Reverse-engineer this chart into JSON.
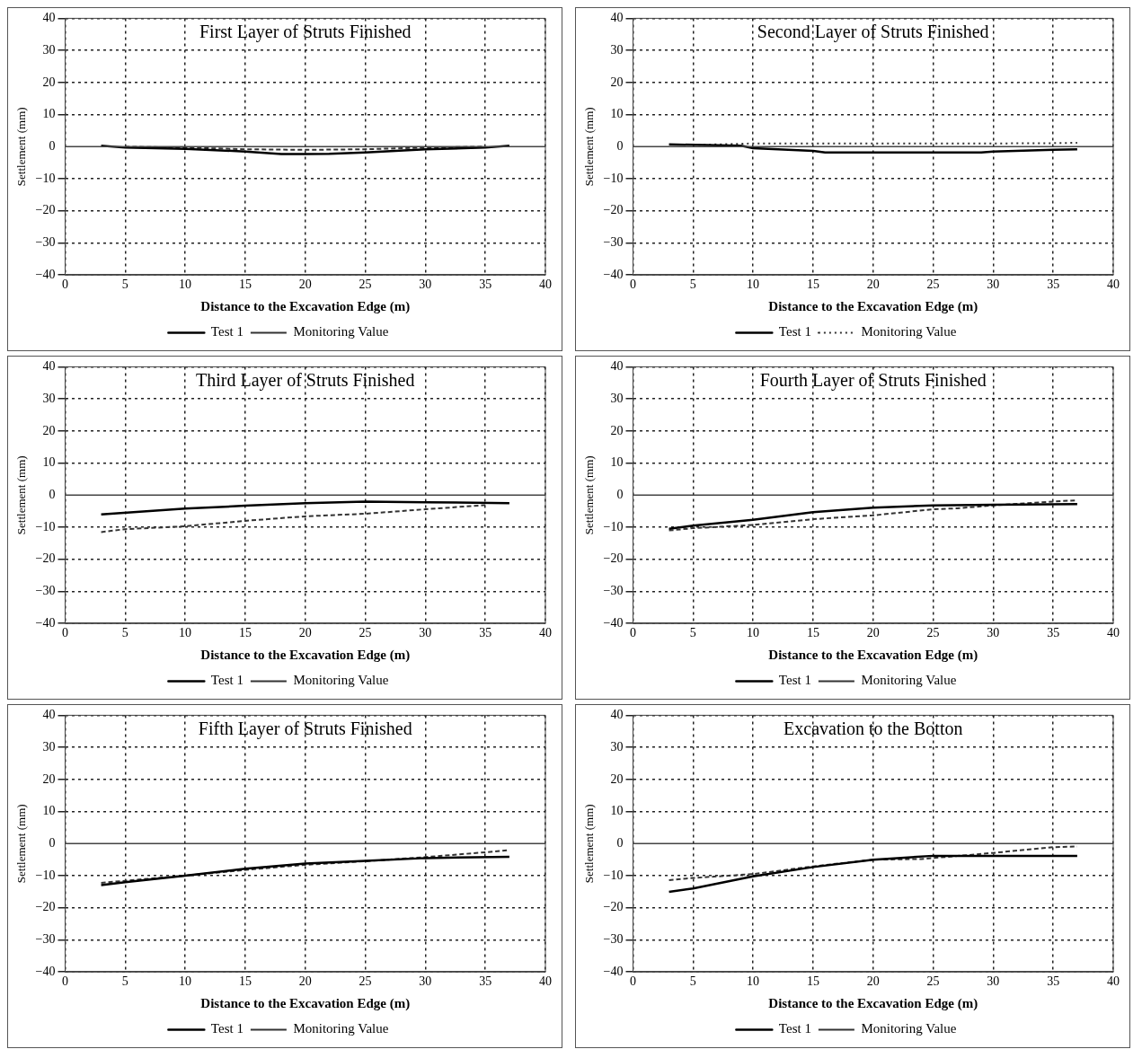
{
  "chart_data": [
    {
      "type": "line",
      "title": "First Layer of Struts Finished",
      "ref_lines": [
        {
          "axis": "y",
          "value": 0
        }
      ],
      "xlabel": "Distance to the Excavation Edge (m)",
      "ylabel": "Settlement (mm)",
      "xlim": [
        0,
        40
      ],
      "ylim": [
        -40,
        40
      ],
      "xticks": [
        0,
        5,
        10,
        15,
        20,
        25,
        30,
        35,
        40
      ],
      "yticks": [
        -40,
        -30,
        -20,
        -10,
        0,
        10,
        20,
        30,
        40
      ],
      "grid": true,
      "legend": "bottom",
      "series": [
        {
          "name": "Test 1",
          "color": "#000000",
          "line_style": "solid",
          "x": [
            3,
            5,
            10,
            15,
            18,
            20,
            22,
            25,
            30,
            35,
            37
          ],
          "values": [
            0.3,
            -0.3,
            -0.7,
            -1.5,
            -2.3,
            -2.3,
            -2.2,
            -1.8,
            -0.8,
            -0.3,
            0.3
          ]
        },
        {
          "name": "Monitoring Value",
          "color": "#333333",
          "line_style": "dashed",
          "x": [
            5,
            10,
            15,
            20,
            25,
            30,
            35
          ],
          "values": [
            0,
            -0.3,
            -0.8,
            -1,
            -0.8,
            -0.3,
            0
          ]
        }
      ]
    },
    {
      "type": "line",
      "title": "Second Layer of Struts Finished",
      "ref_lines": [
        {
          "axis": "y",
          "value": 0
        }
      ],
      "xlabel": "Distance to the Excavation Edge (m)",
      "ylabel": "Settlement (mm)",
      "xlim": [
        0,
        40
      ],
      "ylim": [
        -40,
        40
      ],
      "xticks": [
        0,
        5,
        10,
        15,
        20,
        25,
        30,
        35,
        40
      ],
      "yticks": [
        -40,
        -30,
        -20,
        -10,
        0,
        10,
        20,
        30,
        40
      ],
      "grid": true,
      "legend": "bottom",
      "series": [
        {
          "name": "Test 1",
          "color": "#000000",
          "line_style": "solid",
          "x": [
            3,
            9,
            10,
            15,
            16,
            29,
            30,
            35,
            37
          ],
          "values": [
            0.7,
            0.3,
            -0.5,
            -1.3,
            -1.8,
            -1.8,
            -1.5,
            -1,
            -0.8
          ]
        },
        {
          "name": "Monitoring Value",
          "color": "#333333",
          "line_style": "dotted",
          "x": [
            5,
            10,
            15,
            20,
            25,
            30,
            35,
            37
          ],
          "values": [
            0.5,
            1,
            1,
            1,
            1,
            1,
            1.1,
            1.2
          ]
        }
      ]
    },
    {
      "type": "line",
      "title": "Third Layer of Struts Finished",
      "ref_lines": [
        {
          "axis": "y",
          "value": 0
        }
      ],
      "xlabel": "Distance to the Excavation Edge (m)",
      "ylabel": "Settlement (mm)",
      "xlim": [
        0,
        40
      ],
      "ylim": [
        -40,
        40
      ],
      "xticks": [
        0,
        5,
        10,
        15,
        20,
        25,
        30,
        35,
        40
      ],
      "yticks": [
        -40,
        -30,
        -20,
        -10,
        0,
        10,
        20,
        30,
        40
      ],
      "grid": true,
      "legend": "bottom",
      "series": [
        {
          "name": "Test 1",
          "color": "#000000",
          "line_style": "solid",
          "x": [
            3,
            10,
            15,
            20,
            25,
            30,
            37
          ],
          "values": [
            -6,
            -4.2,
            -3.3,
            -2.5,
            -2,
            -2.2,
            -2.5
          ]
        },
        {
          "name": "Monitoring Value",
          "color": "#333333",
          "line_style": "dashed",
          "x": [
            3,
            5,
            10,
            15,
            20,
            25,
            30,
            35
          ],
          "values": [
            -11.5,
            -10.6,
            -9.7,
            -8,
            -6.6,
            -5.8,
            -4.4,
            -3.1
          ]
        }
      ]
    },
    {
      "type": "line",
      "title": "Fourth Layer of Struts Finished",
      "ref_lines": [
        {
          "axis": "y",
          "value": 0
        }
      ],
      "xlabel": "Distance to the Excavation Edge (m)",
      "ylabel": "Settlement (mm)",
      "xlim": [
        0,
        40
      ],
      "ylim": [
        -40,
        40
      ],
      "xticks": [
        0,
        5,
        10,
        15,
        20,
        25,
        30,
        35,
        40
      ],
      "yticks": [
        -40,
        -30,
        -20,
        -10,
        0,
        10,
        20,
        30,
        40
      ],
      "grid": true,
      "legend": "bottom",
      "series": [
        {
          "name": "Test 1",
          "color": "#000000",
          "line_style": "solid",
          "x": [
            3,
            5,
            10,
            15,
            20,
            25,
            30,
            37
          ],
          "values": [
            -10.5,
            -9.5,
            -7.7,
            -5.3,
            -3.9,
            -3.2,
            -3,
            -2.8
          ]
        },
        {
          "name": "Monitoring Value",
          "color": "#333333",
          "line_style": "dashed",
          "x": [
            3,
            5,
            10,
            15,
            20,
            25,
            27,
            30,
            35,
            37
          ],
          "values": [
            -11,
            -10.3,
            -9.3,
            -7.5,
            -6.3,
            -4.4,
            -4.1,
            -3.2,
            -2,
            -1.6
          ]
        }
      ]
    },
    {
      "type": "line",
      "title": "Fifth Layer of Struts Finished",
      "ref_lines": [
        {
          "axis": "y",
          "value": 0
        }
      ],
      "xlabel": "Distance to the Excavation Edge (m)",
      "ylabel": "Settlement (mm)",
      "xlim": [
        0,
        40
      ],
      "ylim": [
        -40,
        40
      ],
      "xticks": [
        0,
        5,
        10,
        15,
        20,
        25,
        30,
        35,
        40
      ],
      "yticks": [
        -40,
        -30,
        -20,
        -10,
        0,
        10,
        20,
        30,
        40
      ],
      "grid": true,
      "legend": "bottom",
      "series": [
        {
          "name": "Test 1",
          "color": "#000000",
          "line_style": "solid",
          "x": [
            3,
            5,
            10,
            15,
            20,
            25,
            30,
            37
          ],
          "values": [
            -12.9,
            -12,
            -10,
            -7.8,
            -6.2,
            -5.4,
            -4.5,
            -4.1
          ]
        },
        {
          "name": "Monitoring Value",
          "color": "#333333",
          "line_style": "dashed",
          "x": [
            3,
            10,
            15,
            20,
            25,
            30,
            35,
            37
          ],
          "values": [
            -12.2,
            -10,
            -8.2,
            -6.6,
            -5.5,
            -4.2,
            -2.7,
            -2
          ]
        }
      ]
    },
    {
      "type": "line",
      "title": "Excavation to the Botton",
      "ref_lines": [
        {
          "axis": "y",
          "value": 0
        }
      ],
      "xlabel": "Distance to the Excavation Edge (m)",
      "ylabel": "Settlement (mm)",
      "xlim": [
        0,
        40
      ],
      "ylim": [
        -40,
        40
      ],
      "xticks": [
        0,
        5,
        10,
        15,
        20,
        25,
        30,
        35,
        40
      ],
      "yticks": [
        -40,
        -30,
        -20,
        -10,
        0,
        10,
        20,
        30,
        40
      ],
      "grid": true,
      "legend": "bottom",
      "series": [
        {
          "name": "Test 1",
          "color": "#000000",
          "line_style": "solid",
          "x": [
            3,
            5,
            10,
            15,
            20,
            25,
            37
          ],
          "values": [
            -15,
            -14,
            -10.2,
            -7.3,
            -5,
            -3.8,
            -3.8
          ]
        },
        {
          "name": "Monitoring Value",
          "color": "#333333",
          "line_style": "dashed",
          "x": [
            3,
            5,
            10,
            15,
            20,
            24,
            30,
            35,
            37
          ],
          "values": [
            -11.4,
            -10.7,
            -9.5,
            -7.1,
            -5,
            -4.8,
            -2.9,
            -1.1,
            -0.9
          ]
        }
      ]
    }
  ]
}
